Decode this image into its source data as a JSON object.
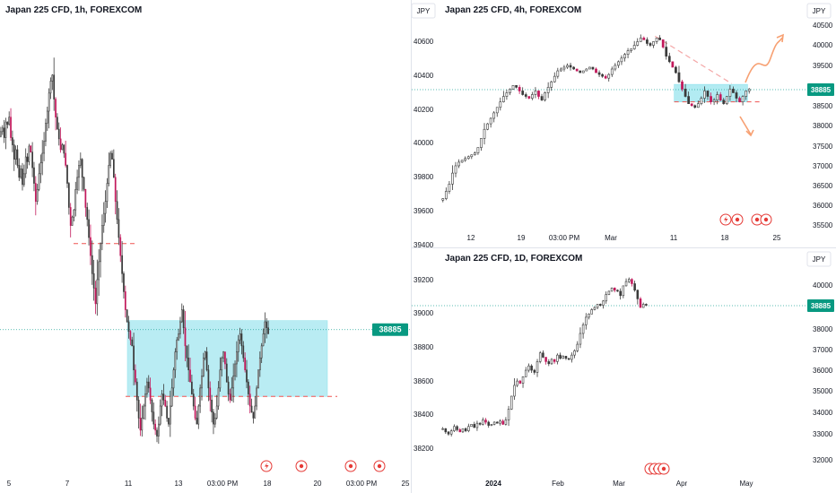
{
  "colors": {
    "candle": "#3a3a3a",
    "up": "#131722",
    "down": "#131722",
    "down_accent": "#c2185b",
    "zone_fill": "#b2ebf2",
    "zone_border": "#80deea",
    "price_line": "#26a69a",
    "price_badge": "#089981",
    "dash_red": "#ef5350",
    "arrow_orange": "#f7a072",
    "event_red": "#e53935",
    "axis_text": "#131722",
    "grid_border": "#e0e3eb"
  },
  "chart_data": [
    {
      "id": "h1",
      "type": "candlestick",
      "title": "Japan 225 CFD, 1h, FOREXCOM",
      "currency": "JPY",
      "x_ticks": [
        "5",
        "7",
        "11",
        "13",
        "03:00 PM",
        "18",
        "20",
        "03:00 PM",
        "25"
      ],
      "y_ticks": [],
      "current_price": "38885",
      "ylim": [
        37900,
        41400
      ],
      "closes": [
        40530,
        40560,
        40480,
        40610,
        40590,
        40650,
        40480,
        40420,
        40300,
        40380,
        40250,
        40150,
        40220,
        40090,
        40180,
        40320,
        40280,
        40410,
        40360,
        40230,
        40100,
        39950,
        40050,
        40180,
        40270,
        40350,
        40450,
        40600,
        40700,
        40850,
        40950,
        41000,
        40800,
        40650,
        40550,
        40470,
        40380,
        40420,
        40350,
        40250,
        40100,
        39900,
        39750,
        39820,
        39880,
        40050,
        40150,
        40250,
        40300,
        40150,
        40050,
        39900,
        39800,
        39650,
        39500,
        39350,
        39230,
        39100,
        39300,
        39450,
        39600,
        39750,
        39850,
        39950,
        40100,
        40250,
        40350,
        40300,
        40150,
        39950,
        39800,
        39650,
        39500,
        39350,
        39200,
        39050,
        38950,
        38870,
        38800,
        38750,
        38550,
        38450,
        38300,
        38150,
        38050,
        38150,
        38250,
        38350,
        38450,
        38400,
        38300,
        38200,
        38100,
        38050,
        38000,
        38100,
        38250,
        38350,
        38300,
        38250,
        38150,
        38100,
        38250,
        38400,
        38550,
        38700,
        38800,
        38850,
        38950,
        39050,
        38900,
        38750,
        38650,
        38550,
        38450,
        38350,
        38250,
        38150,
        38100,
        38250,
        38400,
        38500,
        38650,
        38700,
        38550,
        38400,
        38300,
        38200,
        38100,
        38150,
        38250,
        38400,
        38550,
        38650,
        38700,
        38600,
        38450,
        38350,
        38300,
        38400,
        38500,
        38600,
        38700,
        38800,
        38850,
        38750,
        38650,
        38550,
        38450,
        38350,
        38250,
        38200,
        38150,
        38250,
        38400,
        38550,
        38650,
        38750,
        38850,
        38950,
        38900,
        38850
      ],
      "zone": {
        "from_index": 47,
        "to_index": 150,
        "top": 38960,
        "bottom": 38330
      },
      "dashed_levels": [
        {
          "price": 39600,
          "from_index": 28,
          "to_index": 52
        },
        {
          "price": 38330,
          "from_index": 47,
          "to_index": 158
        }
      ],
      "event_icons": [
        "lightning",
        "target",
        "target",
        "target"
      ]
    },
    {
      "id": "h4",
      "type": "candlestick",
      "title": "Japan 225 CFD, 4h, FOREXCOM",
      "currency": "JPY",
      "x_ticks": [
        "12",
        "19",
        "03:00 PM",
        "Mar",
        "11",
        "18",
        "25"
      ],
      "y_ticks_left": [
        "40600",
        "40400",
        "40200",
        "40000",
        "39800",
        "39600",
        "39400"
      ],
      "y_ticks_right": [
        "40500",
        "40000",
        "39500",
        "38885",
        "38500",
        "38000",
        "37500",
        "37000",
        "36500",
        "36000",
        "35500"
      ],
      "current_price": "38885",
      "ylim": [
        35400,
        40800
      ],
      "closes": [
        35900,
        36100,
        36300,
        36600,
        36800,
        36900,
        36950,
        37000,
        37050,
        37100,
        37150,
        37300,
        37550,
        37800,
        37950,
        38100,
        38250,
        38400,
        38550,
        38700,
        38800,
        38900,
        39000,
        38950,
        38850,
        38750,
        38700,
        38650,
        38750,
        38850,
        38700,
        38600,
        38800,
        38950,
        39100,
        39250,
        39400,
        39450,
        39500,
        39550,
        39500,
        39450,
        39400,
        39350,
        39400,
        39450,
        39500,
        39450,
        39350,
        39300,
        39250,
        39200,
        39300,
        39450,
        39550,
        39650,
        39750,
        39850,
        39950,
        40000,
        40100,
        40200,
        40300,
        40250,
        40150,
        40100,
        40200,
        40300,
        40250,
        40050,
        39800,
        39650,
        39500,
        39350,
        39100,
        38900,
        38700,
        38500,
        38450,
        38400,
        38500,
        38650,
        38850,
        38700,
        38550,
        38600,
        38750,
        38600,
        38500,
        38700,
        38900,
        38800,
        38650,
        38550,
        38700,
        38850,
        38900
      ],
      "zone": {
        "from_index": 73,
        "to_index": 96,
        "top": 39030,
        "bottom": 38550
      },
      "dashed_levels": [
        {
          "price": 38550,
          "from_index": 73,
          "to_index": 100
        }
      ],
      "diagonal_dash": {
        "from_index": 67,
        "from_price": 40350,
        "to_index": 91,
        "to_price": 39050
      },
      "arrows": [
        "up",
        "down"
      ],
      "event_icons": [
        "lightning",
        "target",
        "target",
        "target"
      ]
    },
    {
      "id": "d1",
      "type": "candlestick",
      "title": "Japan 225 CFD, 1D, FOREXCOM",
      "currency": "JPY",
      "x_ticks": [
        "2024",
        "Feb",
        "Mar",
        "Apr",
        "May"
      ],
      "y_ticks_left": [
        "39200",
        "39000",
        "38800",
        "38600",
        "38400",
        "38200"
      ],
      "y_ticks_right": [
        "40000",
        "39000",
        "38885",
        "38000",
        "37000",
        "36000",
        "35000",
        "34000",
        "33000",
        "32000"
      ],
      "current_price": "38885",
      "ylim": [
        31800,
        40500
      ],
      "closes": [
        33200,
        33050,
        32950,
        33100,
        33300,
        33150,
        33050,
        33200,
        33100,
        33300,
        33400,
        33250,
        33450,
        33400,
        33600,
        33500,
        33350,
        33400,
        33500,
        33450,
        33550,
        33400,
        33600,
        34100,
        34700,
        35200,
        35400,
        35300,
        35600,
        35900,
        36100,
        35900,
        35800,
        36300,
        36700,
        36500,
        36300,
        36200,
        36400,
        36300,
        36600,
        36450,
        36550,
        36450,
        36400,
        36600,
        36800,
        37100,
        37600,
        38000,
        38350,
        38500,
        38700,
        38800,
        38950,
        38900,
        39100,
        39400,
        39550,
        39700,
        39600,
        39550,
        39350,
        39800,
        40000,
        40100,
        39900,
        39600,
        39200,
        38800,
        38950,
        38900
      ],
      "event_icons": [
        "target",
        "target",
        "target",
        "target"
      ]
    }
  ]
}
